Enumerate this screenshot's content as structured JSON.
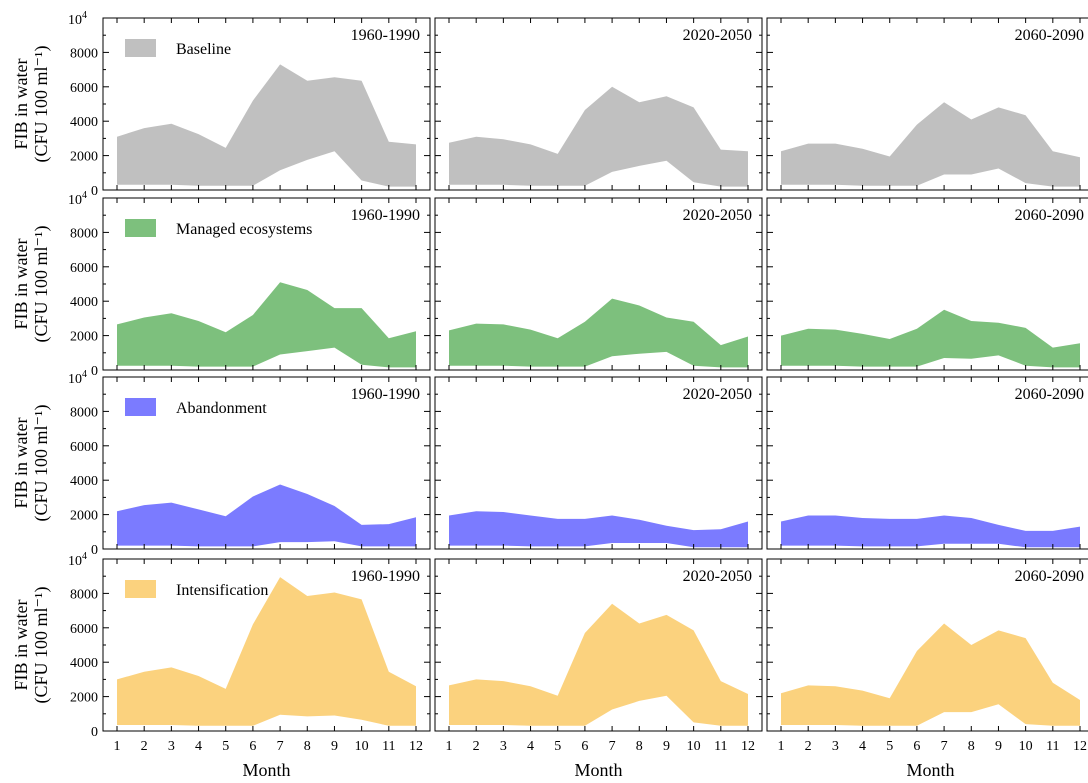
{
  "chart_data": {
    "type": "area",
    "layout": "grid of 4 rows (scenarios) x 3 columns (periods)",
    "shared_y_axis_label": [
      "FIB in water",
      "(CFU 100 ml⁻¹)"
    ],
    "shared_x_axis_label": "Month",
    "x": [
      1,
      2,
      3,
      4,
      5,
      6,
      7,
      8,
      9,
      10,
      11,
      12
    ],
    "x_tick_labels": [
      "1",
      "2",
      "3",
      "4",
      "5",
      "6",
      "7",
      "8",
      "9",
      "10",
      "11",
      "12"
    ],
    "ylim": [
      0,
      10000
    ],
    "y_ticks": [
      0,
      2000,
      4000,
      6000,
      8000
    ],
    "y_tick_labels": [
      "0",
      "2000",
      "4000",
      "6000",
      "8000"
    ],
    "y_top_label": {
      "base": "10",
      "exp": "4"
    },
    "periods": [
      "1960-1990",
      "2020-2050",
      "2060-2090"
    ],
    "legend_placement": "top-left of first column panel",
    "scenarios": [
      {
        "name": "Baseline",
        "color": "#c0c0c0",
        "panels": [
          {
            "period": "1960-1990",
            "upper": [
              3100,
              3600,
              3850,
              3250,
              2450,
              5200,
              7300,
              6350,
              6550,
              6350,
              2800,
              2650
            ],
            "lower": [
              300,
              300,
              300,
              250,
              250,
              250,
              1150,
              1750,
              2250,
              550,
              200,
              200
            ]
          },
          {
            "period": "2020-2050",
            "upper": [
              2750,
              3100,
              2950,
              2650,
              2100,
              4650,
              6000,
              5100,
              5450,
              4800,
              2350,
              2250
            ],
            "lower": [
              300,
              300,
              300,
              250,
              250,
              250,
              1050,
              1400,
              1700,
              450,
              200,
              200
            ]
          },
          {
            "period": "2060-2090",
            "upper": [
              2250,
              2700,
              2700,
              2400,
              1950,
              3800,
              5100,
              4100,
              4800,
              4350,
              2250,
              1900
            ],
            "lower": [
              300,
              300,
              300,
              250,
              250,
              250,
              900,
              900,
              1250,
              400,
              200,
              200
            ]
          }
        ]
      },
      {
        "name": "Managed ecosystems",
        "color": "#7dc07d",
        "panels": [
          {
            "period": "1960-1990",
            "upper": [
              2650,
              3050,
              3300,
              2850,
              2200,
              3200,
              5100,
              4650,
              3600,
              3600,
              1850,
              2250
            ],
            "lower": [
              250,
              250,
              250,
              200,
              200,
              200,
              900,
              1100,
              1300,
              300,
              150,
              150
            ]
          },
          {
            "period": "2020-2050",
            "upper": [
              2300,
              2700,
              2650,
              2350,
              1850,
              2800,
              4150,
              3750,
              3050,
              2800,
              1450,
              1950
            ],
            "lower": [
              250,
              250,
              250,
              200,
              200,
              200,
              800,
              950,
              1050,
              250,
              150,
              150
            ]
          },
          {
            "period": "2060-2090",
            "upper": [
              2000,
              2400,
              2350,
              2100,
              1800,
              2400,
              3500,
              2850,
              2750,
              2450,
              1300,
              1550
            ],
            "lower": [
              250,
              250,
              250,
              200,
              200,
              200,
              700,
              650,
              850,
              250,
              150,
              150
            ]
          }
        ]
      },
      {
        "name": "Abandonment",
        "color": "#7b7bff",
        "panels": [
          {
            "period": "1960-1990",
            "upper": [
              2200,
              2550,
              2700,
              2300,
              1900,
              3050,
              3750,
              3200,
              2500,
              1400,
              1450,
              1850
            ],
            "lower": [
              200,
              200,
              200,
              150,
              150,
              150,
              400,
              400,
              450,
              150,
              150,
              150
            ]
          },
          {
            "period": "2020-2050",
            "upper": [
              1950,
              2200,
              2150,
              1950,
              1750,
              1750,
              1950,
              1700,
              1350,
              1100,
              1150,
              1600
            ],
            "lower": [
              200,
              200,
              200,
              150,
              150,
              150,
              350,
              350,
              350,
              100,
              100,
              100
            ]
          },
          {
            "period": "2060-2090",
            "upper": [
              1600,
              1950,
              1950,
              1800,
              1750,
              1750,
              1950,
              1800,
              1400,
              1050,
              1050,
              1300
            ],
            "lower": [
              200,
              200,
              200,
              150,
              150,
              150,
              300,
              300,
              300,
              100,
              100,
              100
            ]
          }
        ]
      },
      {
        "name": "Intensification",
        "color": "#fbd27e",
        "panels": [
          {
            "period": "1960-1990",
            "upper": [
              3000,
              3450,
              3700,
              3200,
              2450,
              6200,
              8950,
              7850,
              8050,
              7650,
              3450,
              2600
            ],
            "lower": [
              350,
              350,
              350,
              300,
              300,
              300,
              950,
              850,
              900,
              650,
              300,
              300
            ]
          },
          {
            "period": "2020-2050",
            "upper": [
              2650,
              3000,
              2900,
              2600,
              2050,
              5700,
              7400,
              6250,
              6750,
              5850,
              2900,
              2150
            ],
            "lower": [
              350,
              350,
              350,
              300,
              300,
              300,
              1250,
              1750,
              2050,
              500,
              300,
              300
            ]
          },
          {
            "period": "2060-2090",
            "upper": [
              2200,
              2650,
              2600,
              2350,
              1900,
              4650,
              6250,
              5000,
              5850,
              5400,
              2800,
              1800
            ],
            "lower": [
              350,
              350,
              350,
              300,
              300,
              300,
              1100,
              1100,
              1550,
              400,
              300,
              300
            ]
          }
        ]
      }
    ]
  }
}
